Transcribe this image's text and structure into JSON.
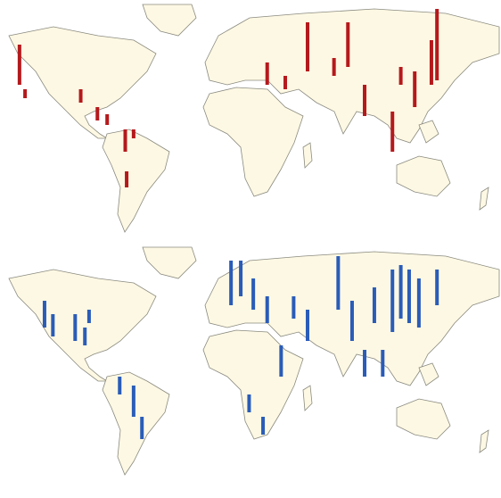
{
  "maps": [
    {
      "color": "#b5191c",
      "bars": [
        {
          "lon": -156,
          "lat": 37.5,
          "value": 45
        },
        {
          "lon": -152,
          "lat": 30,
          "value": 10
        },
        {
          "lon": -112,
          "lat": 27.5,
          "value": 15
        },
        {
          "lon": -100,
          "lat": 17.5,
          "value": 15
        },
        {
          "lon": -93,
          "lat": 15,
          "value": 12
        },
        {
          "lon": -80,
          "lat": 0,
          "value": 25
        },
        {
          "lon": -79,
          "lat": -20,
          "value": 18
        },
        {
          "lon": -74,
          "lat": 7.5,
          "value": 10
        },
        {
          "lon": 51,
          "lat": 45,
          "value": 55
        },
        {
          "lon": 80,
          "lat": 47.5,
          "value": 50
        },
        {
          "lon": 144,
          "lat": 40,
          "value": 80
        },
        {
          "lon": 140,
          "lat": 37.5,
          "value": 50
        },
        {
          "lon": 128,
          "lat": 25,
          "value": 40
        },
        {
          "lon": 112,
          "lat": 0,
          "value": 45
        },
        {
          "lon": 92,
          "lat": 20,
          "value": 35
        },
        {
          "lon": 22,
          "lat": 37.5,
          "value": 25
        },
        {
          "lon": 35,
          "lat": 35,
          "value": 15
        },
        {
          "lon": 70,
          "lat": 42.5,
          "value": 20
        },
        {
          "lon": 118,
          "lat": 37.5,
          "value": 20
        }
      ]
    },
    {
      "color": "#2a5cb8",
      "bars": [
        {
          "lon": -138,
          "lat": 37.5,
          "value": 30
        },
        {
          "lon": -132,
          "lat": 32.5,
          "value": 25
        },
        {
          "lon": -116,
          "lat": 30,
          "value": 30
        },
        {
          "lon": -109,
          "lat": 27.5,
          "value": 20
        },
        {
          "lon": -106,
          "lat": 40,
          "value": 15
        },
        {
          "lon": -74,
          "lat": -12.5,
          "value": 35
        },
        {
          "lon": -68,
          "lat": -25,
          "value": 25
        },
        {
          "lon": -84,
          "lat": 0,
          "value": 20
        },
        {
          "lon": -4,
          "lat": 50,
          "value": 50
        },
        {
          "lon": 3,
          "lat": 55,
          "value": 40
        },
        {
          "lon": 12,
          "lat": 47.5,
          "value": 35
        },
        {
          "lon": 22,
          "lat": 40,
          "value": 30
        },
        {
          "lon": 41,
          "lat": 42.5,
          "value": 25
        },
        {
          "lon": 51,
          "lat": 30,
          "value": 35
        },
        {
          "lon": 73,
          "lat": 47.5,
          "value": 60
        },
        {
          "lon": 83,
          "lat": 30,
          "value": 45
        },
        {
          "lon": 99,
          "lat": 40,
          "value": 40
        },
        {
          "lon": 112,
          "lat": 35,
          "value": 70
        },
        {
          "lon": 124,
          "lat": 40,
          "value": 60
        },
        {
          "lon": 118,
          "lat": 42.5,
          "value": 60
        },
        {
          "lon": 131,
          "lat": 37.5,
          "value": 55
        },
        {
          "lon": 144,
          "lat": 50,
          "value": 40
        },
        {
          "lon": 92,
          "lat": 10,
          "value": 30
        },
        {
          "lon": 105,
          "lat": 10,
          "value": 30
        },
        {
          "lon": 32,
          "lat": 10,
          "value": 35
        },
        {
          "lon": 9,
          "lat": -10,
          "value": 20
        },
        {
          "lon": 19,
          "lat": -22.5,
          "value": 20
        }
      ]
    }
  ]
}
